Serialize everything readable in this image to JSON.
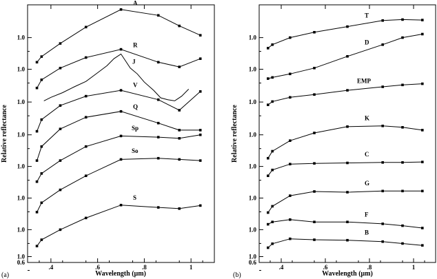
{
  "chart_data": [
    {
      "type": "line",
      "panel_label": "(a)",
      "xlabel": "Wavelength (μm)",
      "ylabel": "Relative reflectance",
      "xlim": [
        0.3,
        1.1
      ],
      "x_ticks": [
        {
          "value": 0.4,
          "label": ".4"
        },
        {
          "value": 0.6,
          "label": ".6"
        },
        {
          "value": 0.8,
          "label": ".8"
        },
        {
          "value": 1.0,
          "label": "1"
        }
      ],
      "y_ticks": [
        "1.0",
        "1.0",
        "1.0",
        "1.0",
        "1.0",
        "1.0",
        "1.0",
        "1.0",
        "0.6"
      ],
      "series": [
        {
          "name": "A",
          "x": [
            0.34,
            0.36,
            0.44,
            0.55,
            0.7,
            0.86,
            0.95,
            1.04
          ],
          "y": [
            8.3,
            8.54,
            9.1,
            9.8,
            10.55,
            10.3,
            9.85,
            9.45
          ]
        },
        {
          "name": "R",
          "x": [
            0.34,
            0.36,
            0.44,
            0.55,
            0.7,
            0.86,
            0.95,
            1.04
          ],
          "y": [
            7.2,
            7.55,
            8.05,
            8.5,
            8.85,
            8.3,
            8.1,
            8.45
          ]
        },
        {
          "name": "J",
          "x": [
            0.37,
            0.4,
            0.45,
            0.5,
            0.55,
            0.6,
            0.64,
            0.67,
            0.7,
            0.72,
            0.74,
            0.77,
            0.8,
            0.84,
            0.87,
            0.9,
            0.93,
            0.96,
            0.99
          ],
          "y": [
            6.65,
            6.8,
            7.0,
            7.25,
            7.48,
            7.85,
            8.15,
            8.45,
            8.65,
            8.35,
            8.05,
            7.8,
            7.45,
            7.1,
            6.78,
            6.7,
            6.65,
            6.85,
            7.15
          ]
        },
        {
          "name": "V",
          "x": [
            0.34,
            0.36,
            0.44,
            0.55,
            0.7,
            0.86,
            0.95,
            1.04
          ],
          "y": [
            5.35,
            5.85,
            6.45,
            6.85,
            7.1,
            6.7,
            6.25,
            7.05
          ]
        },
        {
          "name": "Q",
          "x": [
            0.34,
            0.36,
            0.44,
            0.55,
            0.7,
            0.86,
            0.95,
            1.04
          ],
          "y": [
            4.1,
            4.7,
            5.45,
            5.95,
            6.2,
            5.7,
            5.4,
            5.4
          ]
        },
        {
          "name": "Sp",
          "x": [
            0.34,
            0.36,
            0.44,
            0.55,
            0.7,
            0.86,
            0.95,
            1.04
          ],
          "y": [
            3.2,
            3.55,
            4.1,
            4.7,
            5.15,
            5.1,
            5.05,
            5.2
          ]
        },
        {
          "name": "So",
          "x": [
            0.34,
            0.36,
            0.44,
            0.55,
            0.7,
            0.86,
            0.95,
            1.04
          ],
          "y": [
            1.9,
            2.3,
            2.85,
            3.45,
            4.15,
            4.2,
            4.15,
            4.1
          ]
        },
        {
          "name": "S",
          "x": [
            0.34,
            0.36,
            0.44,
            0.55,
            0.7,
            0.86,
            0.95,
            1.04
          ],
          "y": [
            0.45,
            0.72,
            1.15,
            1.65,
            2.2,
            2.1,
            2.05,
            2.18
          ]
        }
      ]
    },
    {
      "type": "line",
      "panel_label": "(b)",
      "xlabel": "Wavelength (μm)",
      "ylabel": "Relative reflectance",
      "xlim": [
        0.3,
        1.1
      ],
      "x_ticks": [
        {
          "value": 0.4,
          "label": ".4"
        },
        {
          "value": 0.6,
          "label": ".6"
        },
        {
          "value": 0.8,
          "label": ".8"
        },
        {
          "value": 1.0,
          "label": "1"
        }
      ],
      "y_ticks": [
        "1.0",
        "1.0",
        "1.0",
        "1.0",
        "1.0",
        "1.0",
        "1.0",
        "1.0",
        "0.6"
      ],
      "series": [
        {
          "name": "T",
          "x": [
            0.34,
            0.36,
            0.44,
            0.55,
            0.7,
            0.86,
            0.95,
            1.04
          ],
          "y": [
            8.9,
            9.05,
            9.35,
            9.58,
            9.82,
            10.08,
            10.12,
            10.1
          ]
        },
        {
          "name": "D",
          "x": [
            0.34,
            0.36,
            0.44,
            0.55,
            0.7,
            0.86,
            0.95,
            1.04
          ],
          "y": [
            7.6,
            7.65,
            7.8,
            8.05,
            8.55,
            9.05,
            9.35,
            9.5
          ]
        },
        {
          "name": "EMP",
          "x": [
            0.34,
            0.36,
            0.44,
            0.55,
            0.7,
            0.86,
            0.95,
            1.04
          ],
          "y": [
            6.48,
            6.62,
            6.8,
            6.92,
            7.1,
            7.25,
            7.33,
            7.38
          ]
        },
        {
          "name": "K",
          "x": [
            0.34,
            0.36,
            0.44,
            0.55,
            0.7,
            0.86,
            0.95,
            1.04
          ],
          "y": [
            4.2,
            4.5,
            4.95,
            5.28,
            5.55,
            5.58,
            5.52,
            5.4
          ]
        },
        {
          "name": "C",
          "x": [
            0.34,
            0.36,
            0.44,
            0.55,
            0.7,
            0.86,
            0.95,
            1.04
          ],
          "y": [
            3.45,
            3.7,
            3.95,
            3.98,
            4.0,
            4.02,
            4.02,
            4.04
          ]
        },
        {
          "name": "G",
          "x": [
            0.34,
            0.36,
            0.44,
            0.55,
            0.7,
            0.86,
            0.95,
            1.04
          ],
          "y": [
            1.88,
            2.15,
            2.6,
            2.78,
            2.75,
            2.8,
            2.8,
            2.8
          ]
        },
        {
          "name": "F",
          "x": [
            0.34,
            0.36,
            0.44,
            0.55,
            0.7,
            0.86,
            0.95,
            1.04
          ],
          "y": [
            1.38,
            1.48,
            1.58,
            1.48,
            1.48,
            1.4,
            1.32,
            1.22
          ]
        },
        {
          "name": "B",
          "x": [
            0.34,
            0.36,
            0.44,
            0.55,
            0.7,
            0.86,
            0.95,
            1.04
          ],
          "y": [
            0.38,
            0.55,
            0.76,
            0.72,
            0.7,
            0.64,
            0.56,
            0.48
          ]
        }
      ]
    }
  ]
}
